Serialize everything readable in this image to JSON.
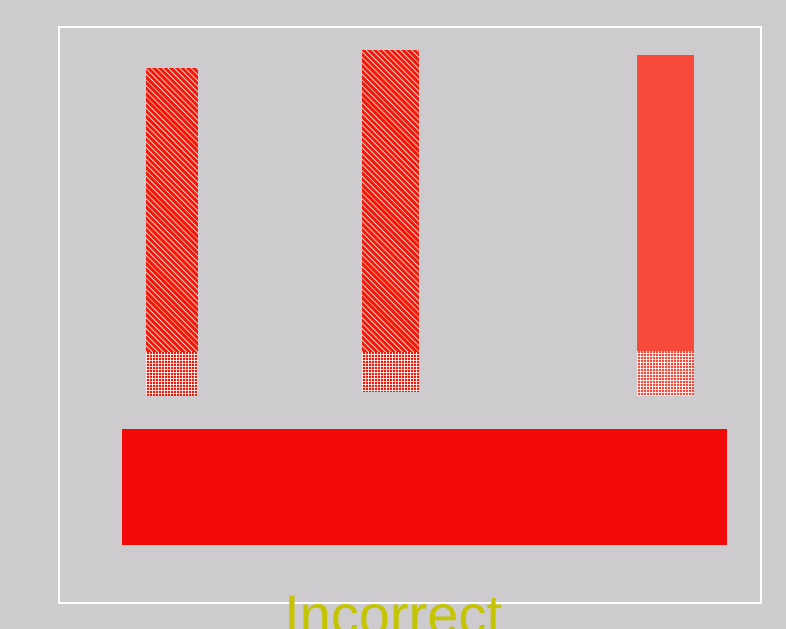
{
  "caption": "Incorrect",
  "colors": {
    "background": "#cdcbcd",
    "frame": "#ffffff",
    "bar_red": "#ee1b0a",
    "bar_light_red": "#f74a3a",
    "base_red": "#f10a07",
    "caption": "#c4c400"
  },
  "shapes": [
    {
      "name": "left-bar",
      "fill": "hatched"
    },
    {
      "name": "middle-bar",
      "fill": "hatched"
    },
    {
      "name": "right-bar",
      "fill": "solid"
    },
    {
      "name": "base-block",
      "fill": "solid"
    }
  ]
}
